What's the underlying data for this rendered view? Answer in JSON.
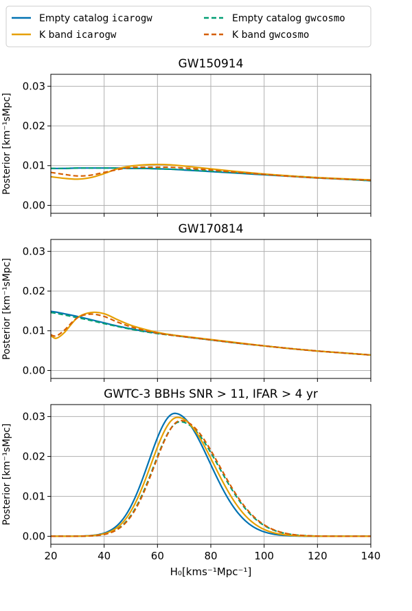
{
  "chart_data": [
    {
      "type": "line",
      "title": "GW150914",
      "xlabel": "",
      "ylabel": "Posterior [km⁻¹sMpc]",
      "xlim": [
        20,
        140
      ],
      "ylim": [
        -0.002,
        0.033
      ],
      "xticks": [
        20,
        40,
        60,
        80,
        100,
        120,
        140
      ],
      "yticks": [
        0.0,
        0.01,
        0.02,
        0.03
      ],
      "ytick_labels": [
        "0.00",
        "0.01",
        "0.02",
        "0.03"
      ],
      "grid": true,
      "x": [
        20,
        25,
        30,
        35,
        40,
        45,
        50,
        55,
        60,
        65,
        70,
        80,
        90,
        100,
        110,
        120,
        130,
        140
      ],
      "series": [
        {
          "name": "Empty catalog icarogw",
          "color": "#0072b2",
          "dash": "solid",
          "values": [
            0.0093,
            0.0093,
            0.0094,
            0.0094,
            0.0094,
            0.0094,
            0.0093,
            0.0093,
            0.0092,
            0.0091,
            0.0089,
            0.0085,
            0.0081,
            0.0077,
            0.0073,
            0.0069,
            0.0066,
            0.0062
          ]
        },
        {
          "name": "Empty catalog gwcosmo",
          "color": "#009e73",
          "dash": "dashed",
          "values": [
            0.0093,
            0.0093,
            0.0094,
            0.0094,
            0.0094,
            0.0094,
            0.0093,
            0.0093,
            0.0092,
            0.0091,
            0.009,
            0.0086,
            0.0082,
            0.0078,
            0.0074,
            0.007,
            0.0066,
            0.0062
          ]
        },
        {
          "name": "K band icarogw",
          "color": "#e69f00",
          "dash": "solid",
          "values": [
            0.0072,
            0.0068,
            0.0066,
            0.007,
            0.008,
            0.0092,
            0.0099,
            0.0102,
            0.0103,
            0.0102,
            0.0099,
            0.0092,
            0.0085,
            0.0079,
            0.0074,
            0.007,
            0.0067,
            0.0064
          ]
        },
        {
          "name": "K band gwcosmo",
          "color": "#d55e00",
          "dash": "dashed",
          "values": [
            0.0083,
            0.0078,
            0.0074,
            0.0076,
            0.0083,
            0.009,
            0.0095,
            0.0096,
            0.0096,
            0.0096,
            0.0094,
            0.0089,
            0.0083,
            0.0078,
            0.0073,
            0.0069,
            0.0066,
            0.0063
          ]
        }
      ]
    },
    {
      "type": "line",
      "title": "GW170814",
      "xlabel": "",
      "ylabel": "Posterior [km⁻¹sMpc]",
      "xlim": [
        20,
        140
      ],
      "ylim": [
        -0.002,
        0.033
      ],
      "xticks": [
        20,
        40,
        60,
        80,
        100,
        120,
        140
      ],
      "yticks": [
        0.0,
        0.01,
        0.02,
        0.03
      ],
      "ytick_labels": [
        "0.00",
        "0.01",
        "0.02",
        "0.03"
      ],
      "grid": true,
      "x": [
        20,
        22,
        25,
        30,
        35,
        40,
        45,
        50,
        55,
        60,
        65,
        70,
        80,
        90,
        100,
        110,
        120,
        130,
        140
      ],
      "series": [
        {
          "name": "Empty catalog icarogw",
          "color": "#0072b2",
          "dash": "solid",
          "values": [
            0.0149,
            0.0147,
            0.0143,
            0.0136,
            0.0128,
            0.012,
            0.0112,
            0.0105,
            0.0099,
            0.0094,
            0.009,
            0.0085,
            0.0077,
            0.0069,
            0.0062,
            0.0055,
            0.0049,
            0.0044,
            0.0039
          ]
        },
        {
          "name": "Empty catalog gwcosmo",
          "color": "#009e73",
          "dash": "dashed",
          "values": [
            0.0146,
            0.0144,
            0.014,
            0.0133,
            0.0126,
            0.0118,
            0.0111,
            0.0104,
            0.0098,
            0.0093,
            0.0089,
            0.0085,
            0.0077,
            0.0069,
            0.0062,
            0.0055,
            0.0049,
            0.0044,
            0.0039
          ]
        },
        {
          "name": "K band icarogw",
          "color": "#e69f00",
          "dash": "solid",
          "values": [
            0.0088,
            0.0081,
            0.0095,
            0.0133,
            0.0146,
            0.0143,
            0.0128,
            0.0114,
            0.0104,
            0.0096,
            0.009,
            0.0086,
            0.0078,
            0.007,
            0.0062,
            0.0055,
            0.0049,
            0.0044,
            0.0039
          ]
        },
        {
          "name": "K band gwcosmo",
          "color": "#d55e00",
          "dash": "dashed",
          "values": [
            0.009,
            0.0087,
            0.0101,
            0.0133,
            0.0142,
            0.0136,
            0.0122,
            0.011,
            0.0101,
            0.0094,
            0.0089,
            0.0085,
            0.0077,
            0.0069,
            0.0062,
            0.0055,
            0.0049,
            0.0044,
            0.0039
          ]
        }
      ]
    },
    {
      "type": "line",
      "title": "GWTC-3 BBHs SNR > 11, IFAR > 4 yr",
      "xlabel": "H₀[kms⁻¹Mpc⁻¹]",
      "ylabel": "Posterior [km⁻¹sMpc]",
      "xlim": [
        20,
        140
      ],
      "ylim": [
        -0.002,
        0.033
      ],
      "xticks": [
        20,
        40,
        60,
        80,
        100,
        120,
        140
      ],
      "xtick_labels": [
        "20",
        "40",
        "60",
        "80",
        "100",
        "120",
        "140"
      ],
      "yticks": [
        0.0,
        0.01,
        0.02,
        0.03
      ],
      "ytick_labels": [
        "0.00",
        "0.01",
        "0.02",
        "0.03"
      ],
      "grid": true,
      "series": [
        {
          "name": "Empty catalog icarogw",
          "color": "#0072b2",
          "dash": "solid",
          "peak_x": 66.5,
          "peak_y": 0.0308,
          "sigma_left": 9.8,
          "sigma_right": 13.0
        },
        {
          "name": "Empty catalog gwcosmo",
          "color": "#009e73",
          "dash": "dashed",
          "peak_x": 68.5,
          "peak_y": 0.0287,
          "sigma_left": 10.0,
          "sigma_right": 14.5
        },
        {
          "name": "K band icarogw",
          "color": "#e69f00",
          "dash": "solid",
          "peak_x": 67.5,
          "peak_y": 0.0298,
          "sigma_left": 9.9,
          "sigma_right": 13.6
        },
        {
          "name": "K band gwcosmo",
          "color": "#d55e00",
          "dash": "dashed",
          "peak_x": 68.8,
          "peak_y": 0.029,
          "sigma_left": 10.0,
          "sigma_right": 14.5
        }
      ]
    }
  ],
  "legend": {
    "placement": "top",
    "entries": [
      {
        "label": "Empty catalog ",
        "code": "icarogw",
        "color": "#0072b2",
        "dash": "solid"
      },
      {
        "label": "K band ",
        "code": "icarogw",
        "color": "#e69f00",
        "dash": "solid"
      },
      {
        "label": "Empty catalog ",
        "code": "gwcosmo",
        "color": "#009e73",
        "dash": "dashed"
      },
      {
        "label": "K band ",
        "code": "gwcosmo",
        "color": "#d55e00",
        "dash": "dashed"
      }
    ]
  }
}
